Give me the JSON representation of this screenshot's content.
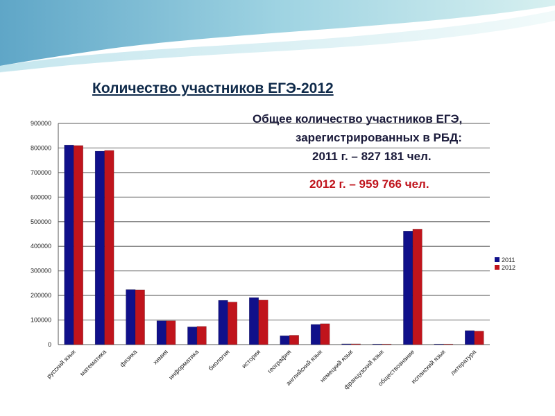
{
  "slide": {
    "title": "Количество участников ЕГЭ-2012",
    "summary": {
      "line1": "Общее количество участников ЕГЭ,",
      "line2": "зарегистрированных в РБД:",
      "line3": "2011 г. – 827 181 чел.",
      "line4": "2012 г. – 959 766 чел."
    }
  },
  "colors": {
    "series_2011": "#10108a",
    "series_2012": "#c0141c",
    "grid": "#7a7a7a",
    "summary_highlight": "#c0141c"
  },
  "chart_data": {
    "type": "bar",
    "categories": [
      "русский язык",
      "математика",
      "физика",
      "химия",
      "информатика",
      "биология",
      "история",
      "география",
      "английский язык",
      "немецкий язык",
      "французский язык",
      "обществознание",
      "испанский язык",
      "литература"
    ],
    "series": [
      {
        "name": "2011",
        "values": [
          812000,
          787000,
          224000,
          97000,
          72000,
          180000,
          191000,
          36000,
          82000,
          3000,
          1500,
          462000,
          300,
          57000
        ]
      },
      {
        "name": "2012",
        "values": [
          810000,
          790000,
          223000,
          97000,
          74000,
          173000,
          181000,
          38000,
          85000,
          3000,
          1500,
          470000,
          300,
          55000
        ]
      }
    ],
    "ylim": [
      0,
      900000
    ],
    "yticks": [
      "0",
      "100000",
      "200000",
      "300000",
      "400000",
      "500000",
      "600000",
      "700000",
      "800000",
      "900000"
    ],
    "grid": true,
    "legend": {
      "position": "right",
      "entries": [
        "2011",
        "2012"
      ]
    }
  }
}
